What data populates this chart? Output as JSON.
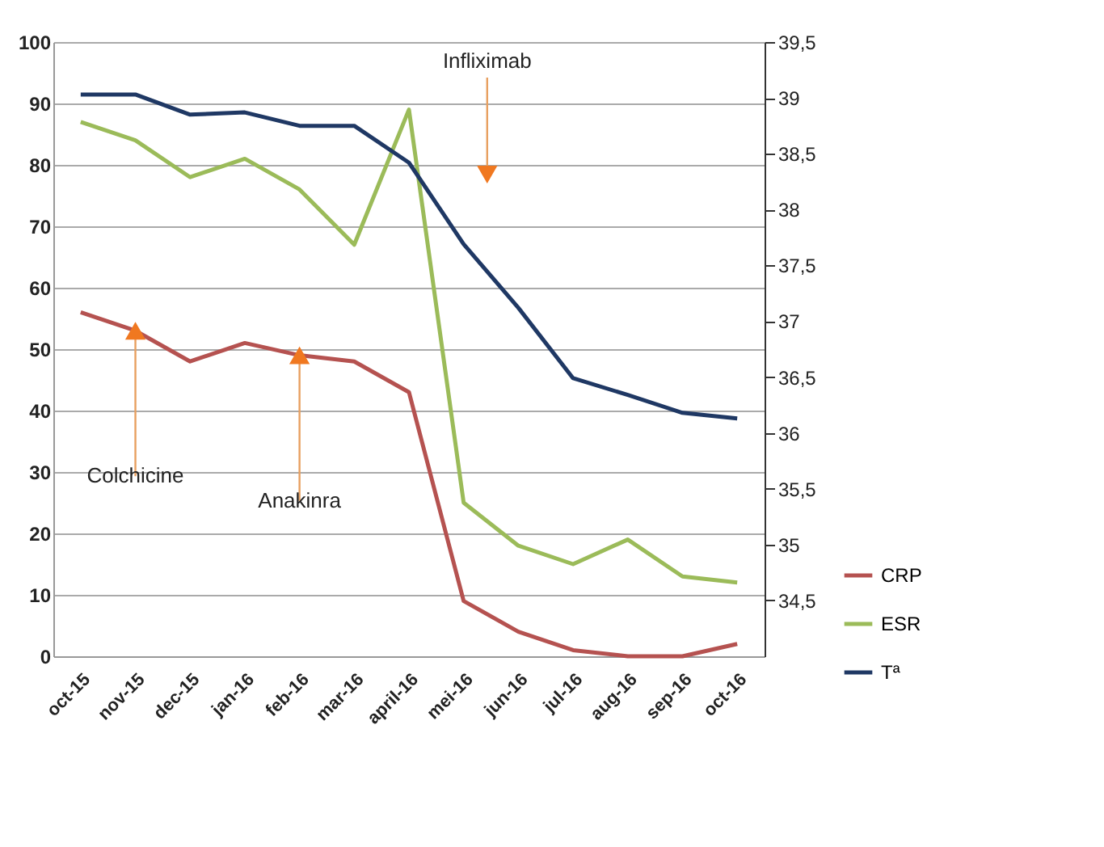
{
  "chart_data": {
    "type": "line",
    "categories": [
      "oct-15",
      "nov-15",
      "dec-15",
      "jan-16",
      "feb-16",
      "mar-16",
      "april-16",
      "mei-16",
      "jun-16",
      "jul-16",
      "aug-16",
      "sep-16",
      "oct-16"
    ],
    "series": [
      {
        "name": "CRP",
        "color": "#b55250",
        "values": [
          56,
          53,
          48,
          51,
          49,
          48,
          43,
          9,
          4,
          1,
          0,
          0,
          2
        ]
      },
      {
        "name": "ESR",
        "color": "#9bbb59",
        "values": [
          87,
          84,
          78,
          81,
          76,
          67,
          89,
          25,
          18,
          15,
          19,
          13,
          12
        ]
      },
      {
        "name": "Tª",
        "color": "#1f3864",
        "axis": "y2",
        "values": [
          39.03,
          39.03,
          38.85,
          38.87,
          38.75,
          38.75,
          38.42,
          37.69,
          37.12,
          36.49,
          36.34,
          36.18,
          36.13
        ]
      }
    ],
    "ylim": [
      0,
      100
    ],
    "yticks": [
      0,
      10,
      20,
      30,
      40,
      50,
      60,
      70,
      80,
      90,
      100
    ],
    "y2lim": [
      34,
      39.5
    ],
    "y2ticks": [
      {
        "value": 34.5,
        "label": "34,5"
      },
      {
        "value": 35,
        "label": "35"
      },
      {
        "value": 35.5,
        "label": "35,5"
      },
      {
        "value": 36,
        "label": "36"
      },
      {
        "value": 36.5,
        "label": "36,5"
      },
      {
        "value": 37,
        "label": "37"
      },
      {
        "value": 37.5,
        "label": "37,5"
      },
      {
        "value": 38,
        "label": "38"
      },
      {
        "value": 38.5,
        "label": "38,5"
      },
      {
        "value": 39,
        "label": "39"
      },
      {
        "value": 39.5,
        "label": "39,5"
      }
    ],
    "annotations": [
      {
        "text": "Colchicine",
        "x": "nov-15",
        "y": 53
      },
      {
        "text": "Anakinra",
        "x": "feb-16",
        "y": 49
      },
      "Infliximab"
    ],
    "grid": "y",
    "legend": "bottom right",
    "marker": "none",
    "line_style": "solid"
  }
}
